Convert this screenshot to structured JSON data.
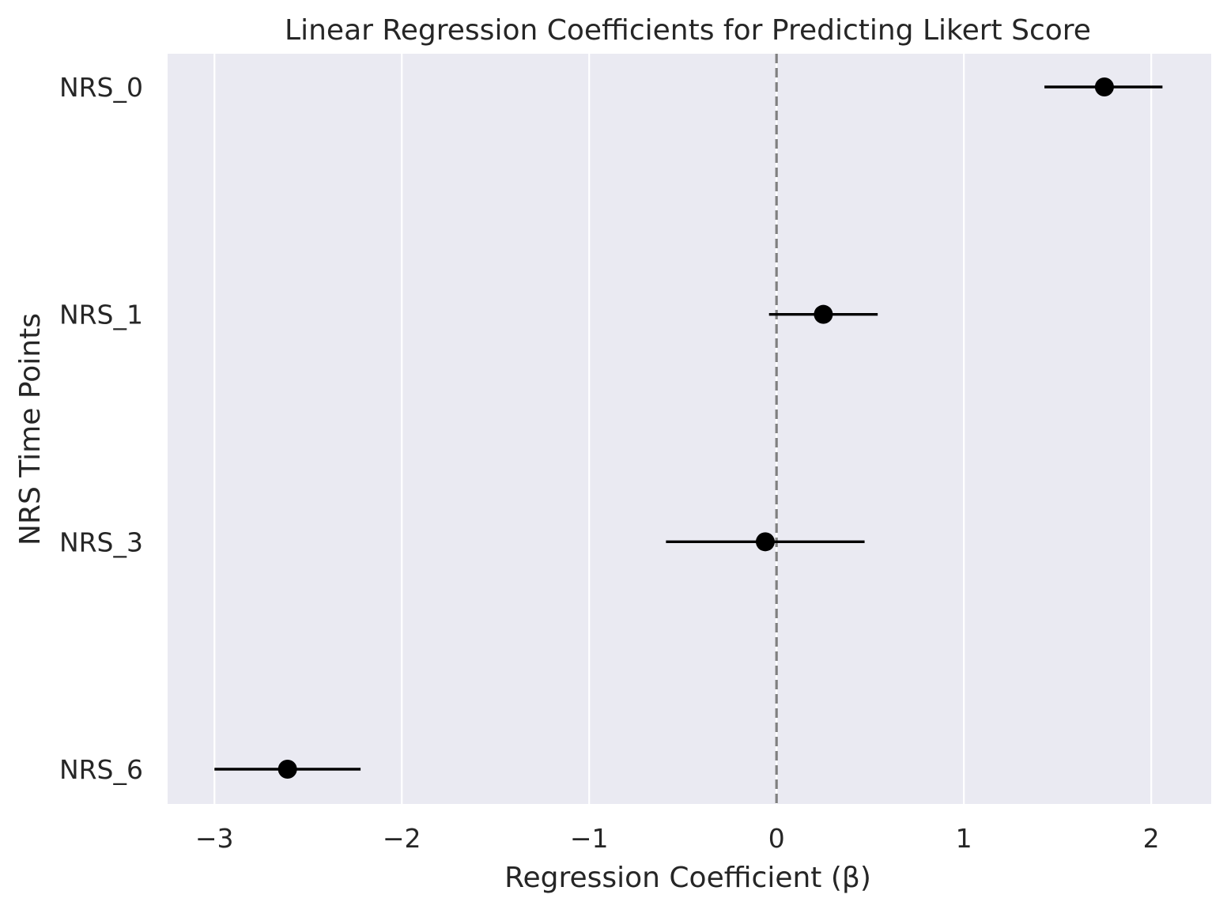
{
  "chart_data": {
    "type": "scatter",
    "title": "Linear Regression Coefficients for Predicting Likert Score",
    "xlabel": "Regression Coefficient (β)",
    "ylabel": "NRS Time Points",
    "xlim": [
      -3.25,
      2.32
    ],
    "x_ticks": [
      -3,
      -2,
      -1,
      0,
      1,
      2
    ],
    "x_tick_labels": [
      "−3",
      "−2",
      "−1",
      "0",
      "1",
      "2"
    ],
    "categories": [
      "NRS_0",
      "NRS_1",
      "NRS_3",
      "NRS_6"
    ],
    "category_labels": [
      "NRS_0",
      "NRS_1",
      "NRS_3",
      "NRS_6"
    ],
    "points": [
      {
        "category": "NRS_0",
        "coef": 1.75,
        "ci_low": 1.43,
        "ci_high": 2.06
      },
      {
        "category": "NRS_1",
        "coef": 0.25,
        "ci_low": -0.04,
        "ci_high": 0.54
      },
      {
        "category": "NRS_3",
        "coef": -0.06,
        "ci_low": -0.59,
        "ci_high": 0.47
      },
      {
        "category": "NRS_6",
        "coef": -2.61,
        "ci_low": -3.0,
        "ci_high": -2.22
      }
    ],
    "reference_line": {
      "x": 0,
      "style": "dashed",
      "color": "#808080"
    },
    "grid": true,
    "grid_axis": "x",
    "colors": {
      "background": "#eaeaf2",
      "grid": "#ffffff",
      "marker": "#000000",
      "errorbar": "#000000"
    }
  }
}
